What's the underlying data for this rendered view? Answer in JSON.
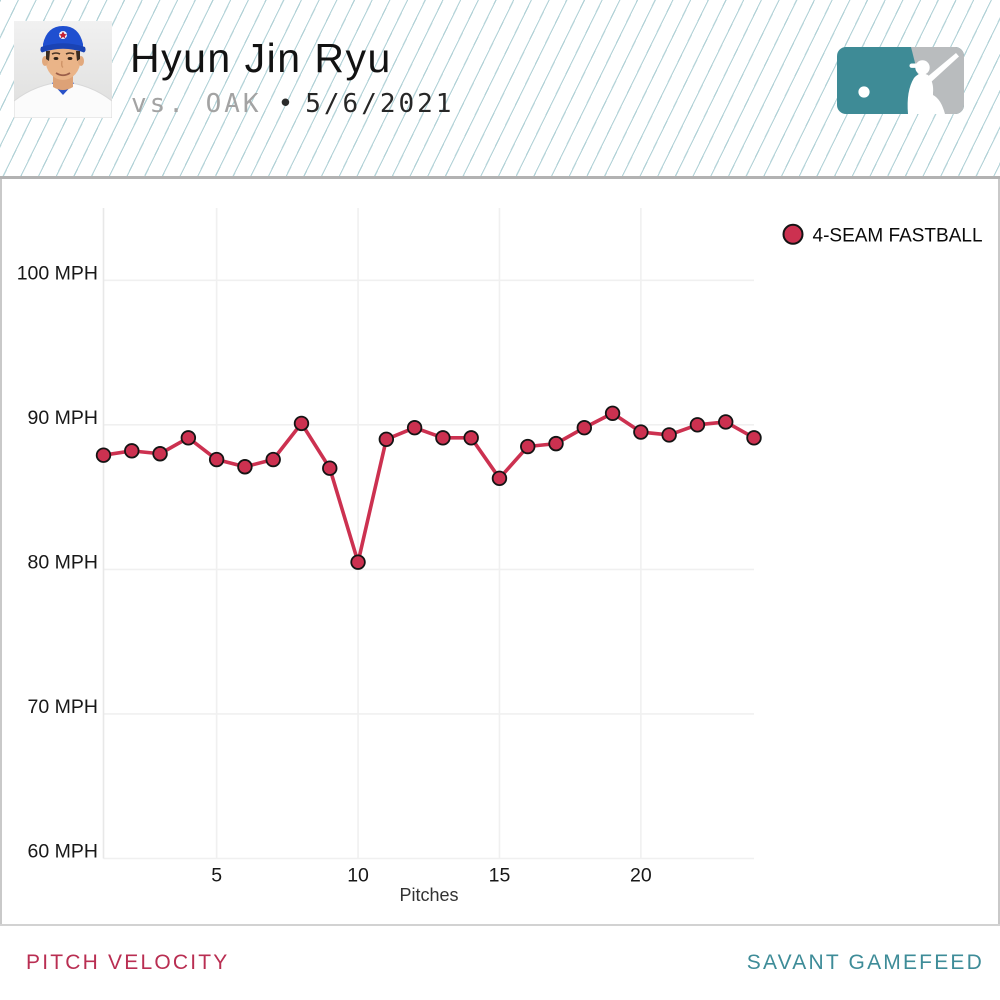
{
  "header": {
    "player_name": "Hyun Jin Ryu",
    "matchup": "vs. OAK",
    "bullet": "•",
    "date": "5/6/2021"
  },
  "legend": {
    "label": "4-SEAM FASTBALL",
    "marker_color": "#cc3150",
    "marker_stroke": "#141414"
  },
  "chart_data": {
    "type": "line",
    "title": "",
    "xlabel": "Pitches",
    "ylabel": "",
    "xlim": [
      1,
      24
    ],
    "ylim": [
      60,
      105
    ],
    "xticks": [
      5,
      10,
      15,
      20
    ],
    "yticks": [
      60,
      70,
      80,
      90,
      100
    ],
    "ytick_suffix": " MPH",
    "grid": true,
    "legend_position": "top-right",
    "series": [
      {
        "name": "4-SEAM FASTBALL",
        "color": "#cc3150",
        "x": [
          1,
          2,
          3,
          4,
          5,
          6,
          7,
          8,
          9,
          10,
          11,
          12,
          13,
          14,
          15,
          16,
          17,
          18,
          19,
          20,
          21,
          22,
          23,
          24
        ],
        "values": [
          87.9,
          88.2,
          88.0,
          89.1,
          87.6,
          87.1,
          87.6,
          90.1,
          87.0,
          80.5,
          89.0,
          89.8,
          89.1,
          89.1,
          86.3,
          88.5,
          88.7,
          89.8,
          90.8,
          89.5,
          89.3,
          90.0,
          90.2,
          89.1
        ]
      }
    ]
  },
  "footer": {
    "left": "PITCH VELOCITY",
    "right": "SAVANT GAMEFEED"
  },
  "colors": {
    "accent_red": "#b92e52",
    "accent_teal": "#3e8c98",
    "stripe_teal": "#589ea8",
    "mlb_logo_teal": "#3e8b96",
    "mlb_logo_gray": "#b9bcbe",
    "grid_gray": "#f0f0f0"
  }
}
